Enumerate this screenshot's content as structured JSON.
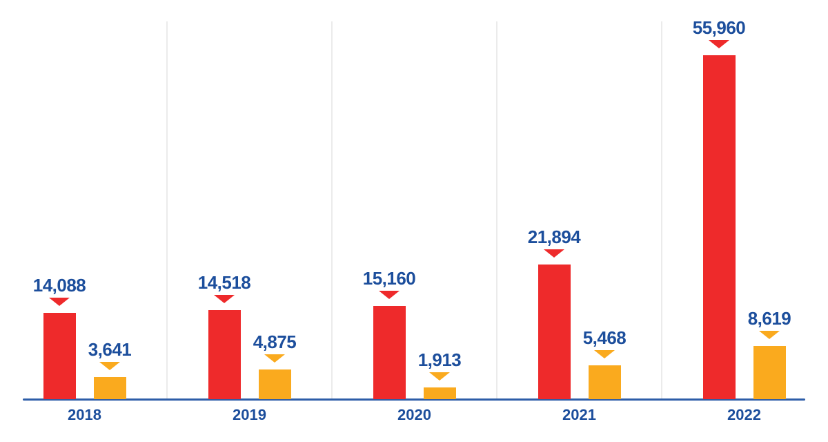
{
  "chart_data": {
    "type": "bar",
    "title": "",
    "categories": [
      "2018",
      "2019",
      "2020",
      "2021",
      "2022"
    ],
    "series": [
      {
        "name": "red",
        "color": "#EE2A2B",
        "values": [
          14088,
          14518,
          15160,
          21894,
          55960
        ],
        "labels": [
          "14,088",
          "14,518",
          "15,160",
          "21,894",
          "55,960"
        ]
      },
      {
        "name": "orange",
        "color": "#FAAA1E",
        "values": [
          3641,
          4875,
          1913,
          5468,
          8619
        ],
        "labels": [
          "3,641",
          "4,875",
          "1,913",
          "5,468",
          "8,619"
        ]
      }
    ],
    "xlabel": "",
    "ylabel": "",
    "ylim": [
      0,
      56000
    ],
    "grid": "vertical separators between year groups only, no horizontal gridlines, no y-axis ticks",
    "legend": "none",
    "annotations": "each bar labeled with its value above a small downward triangle marker matching the bar color"
  },
  "style": {
    "label_color": "#1C4E9C",
    "axis_line_color": "#2D5DA8",
    "gridline_color": "#EBEBEB",
    "background": "#FFFFFF"
  }
}
